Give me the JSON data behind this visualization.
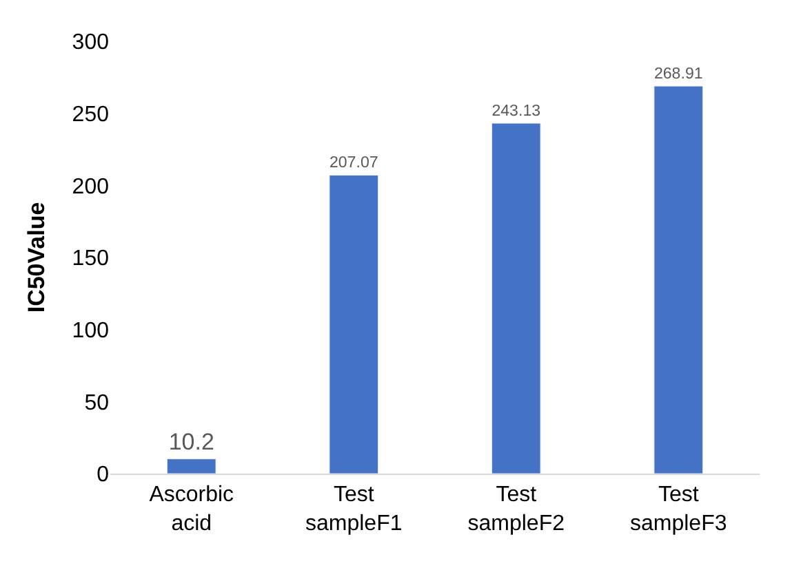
{
  "chart_data": {
    "type": "bar",
    "ylabel": "IC50Value",
    "categories": [
      "Ascorbic acid",
      "Test sampleF1",
      "Test sampleF2",
      "Test sampleF3"
    ],
    "values": [
      10.2,
      207.07,
      243.13,
      268.91
    ],
    "color": "#4472c4",
    "ylim": [
      0,
      300
    ],
    "yticks": [
      0,
      50,
      100,
      150,
      200,
      250,
      300
    ],
    "grid": false,
    "data_labels": true
  }
}
